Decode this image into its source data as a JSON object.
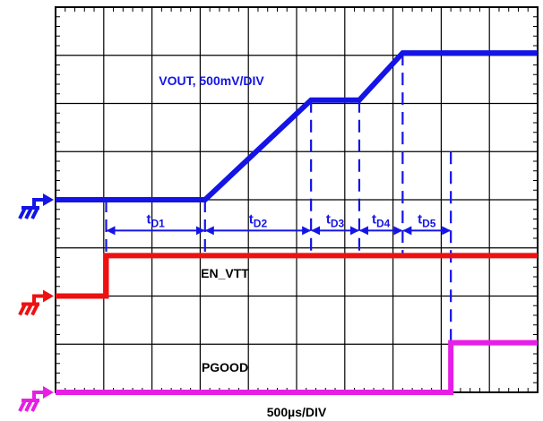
{
  "chart_data": {
    "type": "line",
    "title": "",
    "xlabel": "500µs/DIV",
    "ylabel": "",
    "grid": true,
    "divisions": {
      "x": 10,
      "y": 8
    },
    "x_unit": "div",
    "x_range": [
      0,
      10
    ],
    "series": [
      {
        "name": "VOUT, 500mV/DIV",
        "color": "#1414e6",
        "ground_div": 4,
        "x": [
          0,
          3.1,
          5.3,
          6.3,
          7.2,
          10
        ],
        "y": [
          0,
          0,
          2.07,
          2.07,
          3.05,
          3.05
        ]
      },
      {
        "name": "EN_VTT",
        "color": "#ee1111",
        "ground_div": 2,
        "x": [
          0,
          1.05,
          1.05,
          10
        ],
        "y": [
          0,
          0,
          0.84,
          0.84
        ]
      },
      {
        "name": "PGOOD",
        "color": "#e61ee6",
        "ground_div": 0,
        "x": [
          0,
          8.2,
          8.2,
          10
        ],
        "y": [
          0,
          0,
          1.03,
          1.03
        ]
      }
    ],
    "timing_markers": {
      "x_marks": [
        1.05,
        3.1,
        5.3,
        6.3,
        7.2,
        8.2
      ],
      "intervals": [
        {
          "label": "t",
          "sub": "D1",
          "from": 1.05,
          "to": 3.1
        },
        {
          "label": "t",
          "sub": "D2",
          "from": 3.1,
          "to": 5.3
        },
        {
          "label": "t",
          "sub": "D3",
          "from": 5.3,
          "to": 6.3
        },
        {
          "label": "t",
          "sub": "D4",
          "from": 6.3,
          "to": 7.2
        },
        {
          "label": "t",
          "sub": "D5",
          "from": 7.2,
          "to": 8.2
        }
      ]
    },
    "channel_colors": {
      "vout": "#1414e6",
      "en_vtt": "#ee1111",
      "pgood": "#e61ee6",
      "timing": "#1414e6"
    }
  }
}
